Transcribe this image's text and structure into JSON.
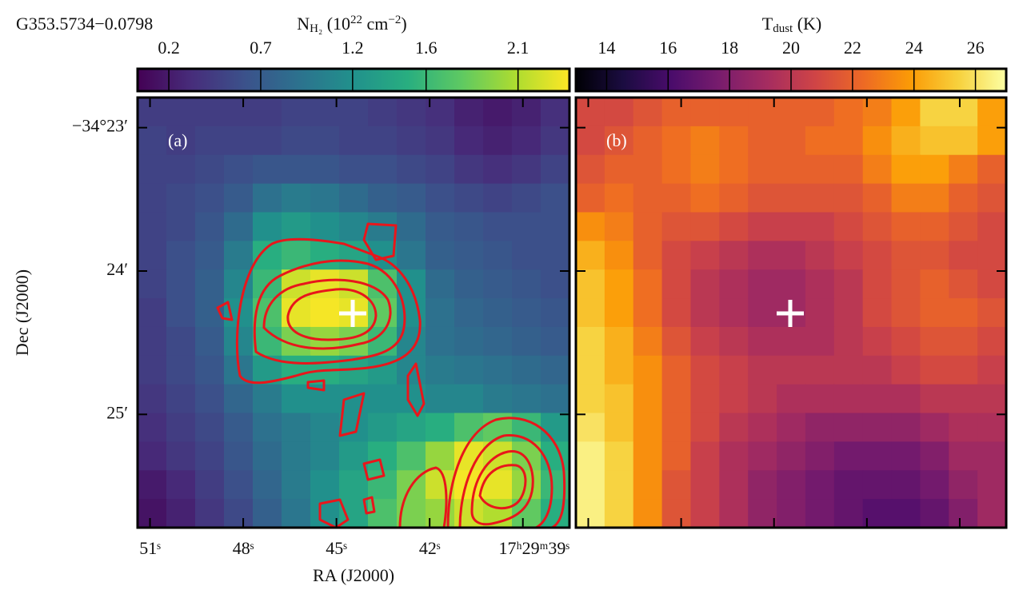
{
  "chart_data": [
    {
      "type": "heatmap",
      "title": "G353.5734−0.0798",
      "panel_label": "(a)",
      "colormap": "viridis",
      "colorbar_label": [
        {
          "text": "N"
        },
        {
          "text": "H₂",
          "script": "sub"
        },
        {
          "text": " (10"
        },
        {
          "text": "22",
          "script": "super"
        },
        {
          "text": " cm"
        },
        {
          "text": "−2",
          "script": "super"
        },
        {
          "text": ")"
        }
      ],
      "clim": [
        0.03,
        2.38
      ],
      "colorbar_ticks": [
        0.2,
        0.7,
        1.2,
        1.6,
        2.1
      ],
      "xlabel": "RA (J2000)",
      "ylabel": "Dec (J2000)",
      "xlim": [
        51.4,
        37.5
      ],
      "xticks": [
        {
          "value": 51,
          "label": "51ˢ"
        },
        {
          "value": 48,
          "label": "48ˢ"
        },
        {
          "value": 45,
          "label": "45ˢ"
        },
        {
          "value": 42,
          "label": "42ˢ"
        },
        {
          "value": 39,
          "label": "17ʰ29ᵐ39ˢ"
        }
      ],
      "ylim": [
        22.79,
        25.79
      ],
      "yticks": [
        {
          "value": 23,
          "label": "−34°23′"
        },
        {
          "value": 24,
          "label": "24′"
        },
        {
          "value": 25,
          "label": "25′"
        }
      ],
      "values": [
        [
          0.45,
          0.45,
          0.45,
          0.45,
          0.45,
          0.5,
          0.5,
          0.5,
          0.45,
          0.4,
          0.35,
          0.25,
          0.2,
          0.25,
          0.35
        ],
        [
          0.5,
          0.45,
          0.5,
          0.5,
          0.5,
          0.55,
          0.55,
          0.5,
          0.5,
          0.45,
          0.4,
          0.3,
          0.25,
          0.3,
          0.4
        ],
        [
          0.5,
          0.5,
          0.55,
          0.6,
          0.65,
          0.65,
          0.65,
          0.6,
          0.6,
          0.55,
          0.5,
          0.4,
          0.35,
          0.4,
          0.5
        ],
        [
          0.5,
          0.55,
          0.6,
          0.7,
          0.9,
          1.0,
          0.95,
          0.85,
          0.75,
          0.7,
          0.6,
          0.55,
          0.5,
          0.55,
          0.6
        ],
        [
          0.5,
          0.55,
          0.65,
          0.85,
          1.2,
          1.3,
          1.2,
          1.1,
          1.0,
          0.85,
          0.7,
          0.65,
          0.6,
          0.6,
          0.6
        ],
        [
          0.5,
          0.6,
          0.7,
          1.0,
          1.5,
          1.6,
          1.5,
          1.4,
          1.2,
          0.95,
          0.75,
          0.7,
          0.65,
          0.6,
          0.6
        ],
        [
          0.5,
          0.6,
          0.75,
          1.1,
          1.6,
          2.2,
          2.3,
          2.2,
          1.7,
          1.2,
          0.85,
          0.75,
          0.7,
          0.65,
          0.6
        ],
        [
          0.45,
          0.6,
          0.75,
          1.2,
          1.7,
          2.3,
          2.35,
          2.3,
          1.8,
          1.2,
          0.9,
          0.8,
          0.75,
          0.7,
          0.65
        ],
        [
          0.45,
          0.55,
          0.7,
          1.1,
          1.6,
          1.9,
          2.0,
          1.9,
          1.6,
          1.1,
          0.9,
          0.85,
          0.8,
          0.75,
          0.7
        ],
        [
          0.45,
          0.55,
          0.65,
          0.95,
          1.3,
          1.5,
          1.5,
          1.4,
          1.3,
          1.1,
          1.0,
          0.95,
          0.9,
          0.85,
          0.8
        ],
        [
          0.4,
          0.5,
          0.6,
          0.8,
          1.0,
          1.2,
          1.2,
          1.2,
          1.2,
          1.2,
          1.1,
          1.1,
          1.0,
          0.95,
          0.9
        ],
        [
          0.35,
          0.45,
          0.55,
          0.7,
          0.9,
          1.0,
          1.1,
          1.2,
          1.3,
          1.4,
          1.5,
          1.7,
          1.8,
          1.6,
          1.3
        ],
        [
          0.3,
          0.4,
          0.5,
          0.65,
          0.85,
          1.0,
          1.1,
          1.3,
          1.5,
          1.7,
          2.0,
          2.3,
          2.2,
          1.9,
          1.5
        ],
        [
          0.2,
          0.3,
          0.45,
          0.6,
          0.8,
          1.0,
          1.2,
          1.4,
          1.6,
          1.9,
          2.2,
          2.35,
          2.3,
          2.0,
          1.6
        ],
        [
          0.15,
          0.25,
          0.4,
          0.55,
          0.75,
          0.95,
          1.2,
          1.4,
          1.7,
          1.9,
          2.0,
          2.2,
          2.1,
          1.8,
          1.5
        ]
      ]
    },
    {
      "type": "heatmap",
      "panel_label": "(b)",
      "colormap": "inferno",
      "colorbar_label": [
        {
          "text": "T"
        },
        {
          "text": "dust",
          "script": "sub"
        },
        {
          "text": " (K)"
        }
      ],
      "clim": [
        13.0,
        27.0
      ],
      "colorbar_ticks": [
        14,
        16,
        18,
        20,
        22,
        24,
        26
      ],
      "values": [
        [
          21,
          21,
          21.5,
          22,
          22,
          22,
          22,
          22,
          22,
          22.5,
          23,
          24,
          25.5,
          25.5,
          24
        ],
        [
          21,
          21.5,
          22,
          22.5,
          23,
          22.5,
          22,
          22,
          22.5,
          22.5,
          23.5,
          24.5,
          25,
          25,
          24
        ],
        [
          21.5,
          22,
          22,
          22.5,
          23,
          22.5,
          22,
          22,
          22,
          22,
          23,
          24,
          24,
          23,
          22
        ],
        [
          22,
          22.5,
          22,
          22,
          22.5,
          22,
          21.5,
          21.5,
          21.5,
          21.5,
          22,
          23,
          23,
          22,
          21.5
        ],
        [
          23.5,
          23,
          22,
          21.5,
          21.5,
          21,
          20.5,
          20.5,
          20.5,
          21,
          21.5,
          22,
          22,
          21.5,
          21
        ],
        [
          24.5,
          23.5,
          22,
          21,
          20.5,
          20,
          19.5,
          19.5,
          20,
          20.5,
          21,
          21.5,
          21.5,
          21,
          21
        ],
        [
          25,
          24,
          22.5,
          21,
          20,
          19.5,
          19,
          19,
          19.5,
          20,
          21,
          21.5,
          22,
          21.5,
          21
        ],
        [
          25,
          24,
          22.5,
          21,
          20,
          19.5,
          19,
          19,
          19.5,
          20,
          21,
          21.5,
          22,
          22,
          21.5
        ],
        [
          25.5,
          24.5,
          23,
          21.5,
          20.5,
          20,
          19.5,
          19.5,
          19.5,
          20,
          20.5,
          21,
          21.5,
          21.5,
          21
        ],
        [
          25.5,
          24.5,
          23.5,
          22,
          21,
          20.5,
          20,
          20,
          20,
          20,
          20,
          20.5,
          21,
          21,
          20.5
        ],
        [
          25.5,
          25,
          23.5,
          22,
          21,
          20.5,
          20,
          19.5,
          19.5,
          19.5,
          19.5,
          19.5,
          20,
          20,
          20
        ],
        [
          26,
          25,
          23.5,
          22,
          21,
          20,
          19.5,
          19,
          18.5,
          18.5,
          18.5,
          18.5,
          19,
          19.5,
          19.5
        ],
        [
          26.5,
          25.5,
          23.5,
          22,
          20.5,
          19.5,
          19,
          18.5,
          18,
          17.5,
          17.5,
          17.5,
          18,
          19,
          19
        ],
        [
          26.5,
          25.5,
          23.5,
          21.5,
          20.5,
          19.5,
          18.5,
          18,
          17.5,
          17,
          17,
          17,
          17.5,
          18.5,
          19
        ],
        [
          26.5,
          25.5,
          23.5,
          21.5,
          20.5,
          19.5,
          18.5,
          18,
          17.5,
          17,
          16.5,
          16.5,
          17,
          18,
          19
        ]
      ]
    }
  ]
}
